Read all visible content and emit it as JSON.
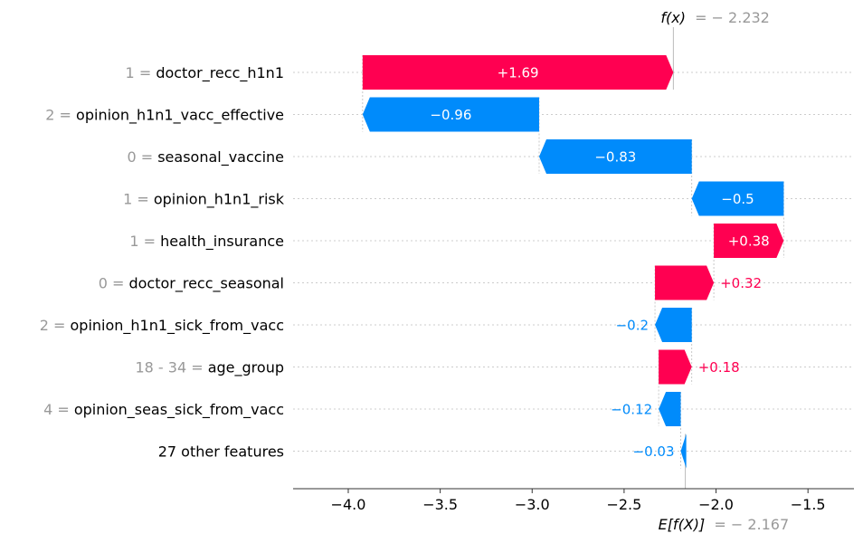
{
  "chart_data": {
    "type": "waterfall",
    "title": "",
    "f_x": {
      "label_prefix": "f(x)",
      "value_text": "= − 2.232",
      "value": -2.232
    },
    "expected": {
      "label_prefix": "E[f(X)]",
      "value_text": "= − 2.167",
      "value": -2.167
    },
    "xlim": [
      -4.3,
      -1.25
    ],
    "x_ticks": [
      {
        "value": -4.0,
        "label": "−4.0"
      },
      {
        "value": -3.5,
        "label": "−3.5"
      },
      {
        "value": -3.0,
        "label": "−3.0"
      },
      {
        "value": -2.5,
        "label": "−2.5"
      },
      {
        "value": -2.0,
        "label": "−2.0"
      },
      {
        "value": -1.5,
        "label": "−1.5"
      }
    ],
    "features": [
      {
        "value": "1 =",
        "name": "doctor_recc_h1n1",
        "contribution": 1.69,
        "label": "+1.69"
      },
      {
        "value": "2 =",
        "name": "opinion_h1n1_vacc_effective",
        "contribution": -0.96,
        "label": "−0.96"
      },
      {
        "value": "0 =",
        "name": "seasonal_vaccine",
        "contribution": -0.83,
        "label": "−0.83"
      },
      {
        "value": "1 =",
        "name": "opinion_h1n1_risk",
        "contribution": -0.5,
        "label": "−0.5"
      },
      {
        "value": "1 =",
        "name": "health_insurance",
        "contribution": 0.38,
        "label": "+0.38"
      },
      {
        "value": "0 =",
        "name": "doctor_recc_seasonal",
        "contribution": 0.32,
        "label": "+0.32"
      },
      {
        "value": "2 =",
        "name": "opinion_h1n1_sick_from_vacc",
        "contribution": -0.2,
        "label": "−0.2"
      },
      {
        "value": "18 - 34  =",
        "name": "age_group",
        "contribution": 0.18,
        "label": "+0.18"
      },
      {
        "value": "4 =",
        "name": "opinion_seas_sick_from_vacc",
        "contribution": -0.12,
        "label": "−0.12"
      },
      {
        "value": "",
        "name": "27 other features",
        "contribution": -0.03,
        "label": "−0.03"
      }
    ],
    "colors": {
      "positive": "#ff0051",
      "negative": "#008bfb",
      "value_grey": "#999999"
    }
  }
}
